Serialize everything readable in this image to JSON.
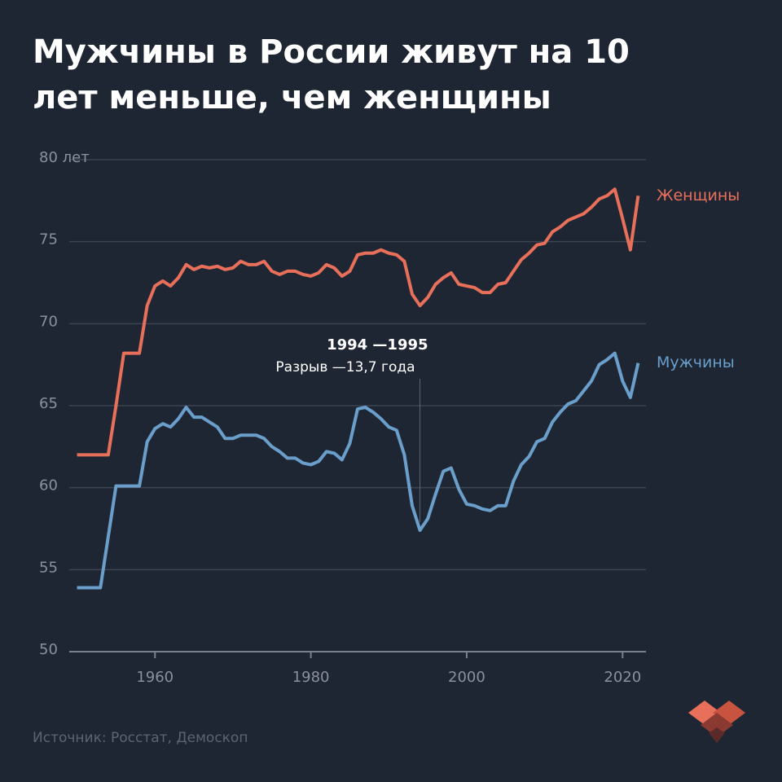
{
  "chart_data": {
    "type": "line",
    "title": "Мужчины в России живут на 10 лет меньше, чем женщины",
    "source": "Источник: Росстат, Демоскоп",
    "x": [
      1950,
      1951,
      1952,
      1953,
      1954,
      1955,
      1956,
      1957,
      1958,
      1959,
      1960,
      1961,
      1962,
      1963,
      1964,
      1965,
      1966,
      1967,
      1968,
      1969,
      1970,
      1971,
      1972,
      1973,
      1974,
      1975,
      1976,
      1977,
      1978,
      1979,
      1980,
      1981,
      1982,
      1983,
      1984,
      1985,
      1986,
      1987,
      1988,
      1989,
      1990,
      1991,
      1992,
      1993,
      1994,
      1995,
      1996,
      1997,
      1998,
      1999,
      2000,
      2001,
      2002,
      2003,
      2004,
      2005,
      2006,
      2007,
      2008,
      2009,
      2010,
      2011,
      2012,
      2013,
      2014,
      2015,
      2016,
      2017,
      2018,
      2019,
      2020,
      2021,
      2022
    ],
    "series": [
      {
        "name": "Женщины",
        "color": "#e8705a",
        "values": [
          62,
          62,
          62,
          62,
          62,
          65,
          68.2,
          68.2,
          68.2,
          71.1,
          72.3,
          72.6,
          72.3,
          72.8,
          73.6,
          73.3,
          73.5,
          73.4,
          73.5,
          73.3,
          73.4,
          73.8,
          73.6,
          73.6,
          73.8,
          73.2,
          73.0,
          73.2,
          73.2,
          73.0,
          72.9,
          73.1,
          73.6,
          73.4,
          72.9,
          73.2,
          74.2,
          74.3,
          74.3,
          74.5,
          74.3,
          74.2,
          73.8,
          71.8,
          71.1,
          71.6,
          72.4,
          72.8,
          73.1,
          72.4,
          72.3,
          72.2,
          71.9,
          71.9,
          72.4,
          72.5,
          73.2,
          73.9,
          74.3,
          74.8,
          74.9,
          75.6,
          75.9,
          76.3,
          76.5,
          76.7,
          77.1,
          77.6,
          77.8,
          78.2,
          76.4,
          74.5,
          77.8
        ]
      },
      {
        "name": "Мужчины",
        "color": "#6b9fcb",
        "values": [
          53.9,
          53.9,
          53.9,
          53.9,
          57,
          60.1,
          60.1,
          60.1,
          60.1,
          62.8,
          63.6,
          63.9,
          63.7,
          64.2,
          64.9,
          64.3,
          64.3,
          64.0,
          63.7,
          63.0,
          63.0,
          63.2,
          63.2,
          63.2,
          63.0,
          62.5,
          62.2,
          61.8,
          61.8,
          61.5,
          61.4,
          61.6,
          62.2,
          62.1,
          61.7,
          62.7,
          64.8,
          64.9,
          64.6,
          64.2,
          63.7,
          63.5,
          62.0,
          58.9,
          57.4,
          58.1,
          59.6,
          61.0,
          61.2,
          59.9,
          59.0,
          58.9,
          58.7,
          58.6,
          58.9,
          58.9,
          60.4,
          61.4,
          61.9,
          62.8,
          63.0,
          64.0,
          64.6,
          65.1,
          65.3,
          65.9,
          66.5,
          67.5,
          67.8,
          68.2,
          66.5,
          65.5,
          67.6
        ]
      }
    ],
    "annotation": {
      "x": 1994,
      "title": "1994 —1995",
      "text": "Разрыв —13,7 года"
    },
    "xlim": [
      1949,
      2023
    ],
    "xticks": [
      1960,
      1980,
      2000,
      2020
    ],
    "ylim": [
      50,
      80
    ],
    "yticks": [
      50,
      55,
      60,
      65,
      70,
      75,
      {
        "value": 80,
        "label": "80 лет"
      }
    ],
    "grid": true
  }
}
